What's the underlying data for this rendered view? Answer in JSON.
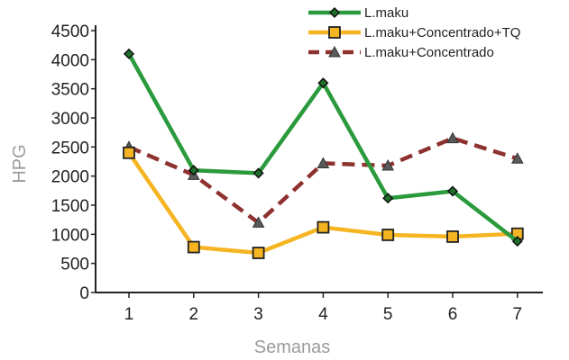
{
  "chart_data": {
    "type": "line",
    "title": "",
    "xlabel": "Semanas",
    "ylabel": "HPG",
    "categories": [
      "1",
      "2",
      "3",
      "4",
      "5",
      "6",
      "7"
    ],
    "ylim": [
      0,
      4500
    ],
    "yticks": [
      0,
      500,
      1000,
      1500,
      2000,
      2500,
      3000,
      3500,
      4000,
      4500
    ],
    "grid": false,
    "legend_position": "top-right",
    "series": [
      {
        "name": "L.maku",
        "values": [
          4100,
          2100,
          2050,
          3600,
          1620,
          1740,
          880
        ],
        "color": "#2a9a3c",
        "line_style": "solid",
        "marker": "diamond"
      },
      {
        "name": "L.maku+Concentrado+TQ",
        "values": [
          2400,
          780,
          680,
          1120,
          990,
          960,
          1010
        ],
        "color": "#f5b523",
        "line_style": "solid",
        "marker": "square"
      },
      {
        "name": "L.maku+Concentrado",
        "values": [
          2500,
          2020,
          1200,
          2220,
          2180,
          2650,
          2300
        ],
        "color": "#8e3230",
        "line_style": "dashed",
        "marker": "triangle"
      }
    ]
  }
}
